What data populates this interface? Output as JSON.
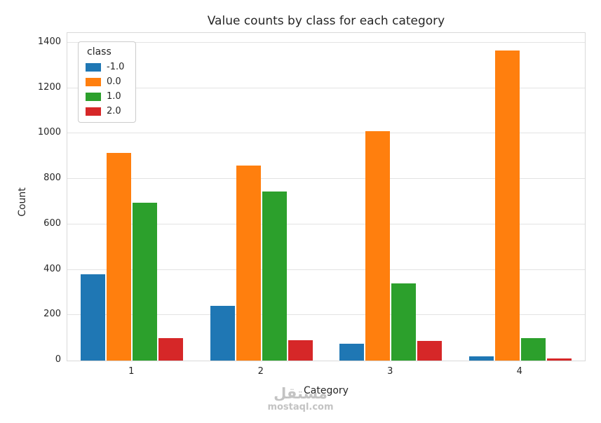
{
  "legend": {
    "title": "class"
  },
  "watermark": {
    "line1": "مستقل",
    "line2": "mostaql.com"
  },
  "chart_data": {
    "type": "bar",
    "title": "Value counts by class for each category",
    "xlabel": "Category",
    "ylabel": "Count",
    "categories": [
      "1",
      "2",
      "3",
      "4"
    ],
    "series": [
      {
        "name": "-1.0",
        "color": "#1f77b4",
        "values": [
          380,
          240,
          75,
          20
        ]
      },
      {
        "name": "0.0",
        "color": "#ff7f0e",
        "values": [
          915,
          860,
          1010,
          1365
        ]
      },
      {
        "name": "1.0",
        "color": "#2ca02c",
        "values": [
          695,
          745,
          340,
          100
        ]
      },
      {
        "name": "2.0",
        "color": "#d62728",
        "values": [
          100,
          90,
          88,
          10
        ]
      }
    ],
    "ylim": [
      0,
      1443
    ],
    "yticks": [
      0,
      200,
      400,
      600,
      800,
      1000,
      1200,
      1400
    ],
    "grid": true,
    "legend_position": "upper left"
  }
}
